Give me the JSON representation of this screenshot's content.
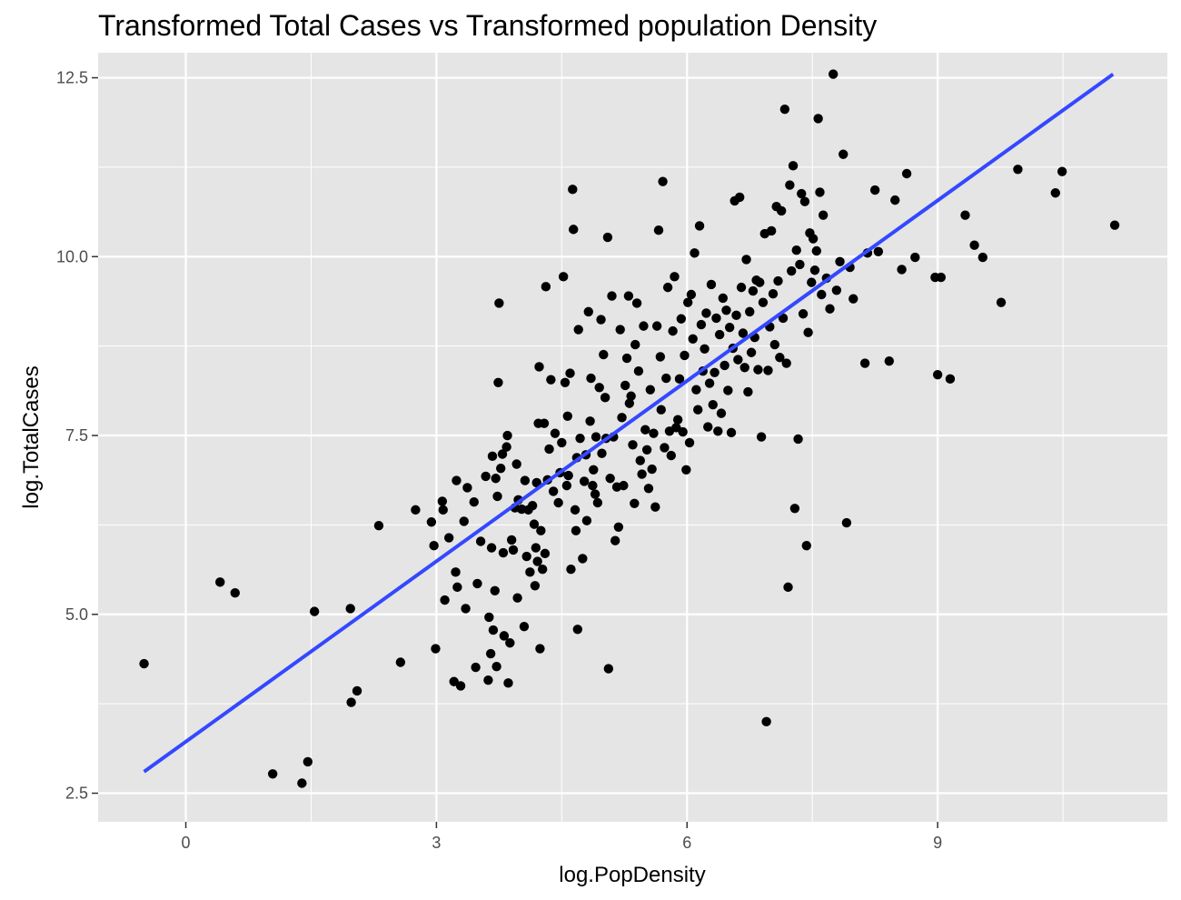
{
  "chart_data": {
    "type": "scatter",
    "title": "Transformed Total Cases vs Transformed population Density",
    "xlabel": "log.PopDensity",
    "ylabel": "log.TotalCases",
    "xlim": [
      -1.05,
      11.75
    ],
    "ylim": [
      2.1,
      12.85
    ],
    "x_ticks": [
      0,
      3,
      6,
      9
    ],
    "x_tick_labels": [
      "0",
      "3",
      "6",
      "9"
    ],
    "y_ticks": [
      2.5,
      5.0,
      7.5,
      10.0,
      12.5
    ],
    "y_tick_labels": [
      "2.5",
      "5.0",
      "7.5",
      "10.0",
      "12.5"
    ],
    "grid": true,
    "colors": {
      "panel": "#e5e5e5",
      "grid": "#ffffff",
      "points": "#000000",
      "fit_line": "#3348ff"
    },
    "fit_line": {
      "x": [
        -0.5,
        11.1
      ],
      "y": [
        2.8,
        12.55
      ]
    },
    "points": [
      [
        -0.5,
        4.31
      ],
      [
        0.41,
        5.45
      ],
      [
        0.59,
        5.3
      ],
      [
        1.04,
        2.77
      ],
      [
        1.39,
        2.64
      ],
      [
        1.46,
        2.94
      ],
      [
        1.54,
        5.04
      ],
      [
        1.97,
        5.08
      ],
      [
        1.98,
        3.77
      ],
      [
        2.05,
        3.93
      ],
      [
        2.31,
        6.24
      ],
      [
        2.57,
        4.33
      ],
      [
        2.75,
        6.46
      ],
      [
        2.94,
        6.29
      ],
      [
        2.97,
        5.96
      ],
      [
        2.99,
        4.52
      ],
      [
        3.07,
        6.58
      ],
      [
        3.08,
        6.46
      ],
      [
        3.1,
        5.2
      ],
      [
        3.15,
        6.07
      ],
      [
        3.21,
        4.06
      ],
      [
        3.23,
        5.59
      ],
      [
        3.24,
        6.87
      ],
      [
        3.25,
        5.38
      ],
      [
        3.29,
        4.0
      ],
      [
        3.33,
        6.3
      ],
      [
        3.35,
        5.08
      ],
      [
        3.37,
        6.77
      ],
      [
        3.45,
        6.57
      ],
      [
        3.47,
        4.26
      ],
      [
        3.49,
        5.43
      ],
      [
        3.53,
        6.02
      ],
      [
        3.59,
        6.93
      ],
      [
        3.62,
        4.08
      ],
      [
        3.63,
        4.96
      ],
      [
        3.65,
        4.45
      ],
      [
        3.66,
        5.93
      ],
      [
        3.67,
        7.21
      ],
      [
        3.68,
        4.78
      ],
      [
        3.7,
        5.33
      ],
      [
        3.71,
        6.9
      ],
      [
        3.72,
        4.27
      ],
      [
        3.73,
        6.65
      ],
      [
        3.74,
        8.24
      ],
      [
        3.75,
        9.35
      ],
      [
        3.77,
        7.04
      ],
      [
        3.79,
        7.24
      ],
      [
        3.8,
        5.86
      ],
      [
        3.81,
        4.7
      ],
      [
        3.84,
        7.34
      ],
      [
        3.85,
        7.5
      ],
      [
        3.86,
        4.04
      ],
      [
        3.88,
        4.6
      ],
      [
        3.9,
        6.04
      ],
      [
        3.92,
        5.9
      ],
      [
        3.94,
        6.49
      ],
      [
        3.96,
        7.1
      ],
      [
        3.97,
        5.23
      ],
      [
        3.98,
        6.6
      ],
      [
        4.02,
        6.47
      ],
      [
        4.05,
        4.83
      ],
      [
        4.06,
        6.87
      ],
      [
        4.08,
        5.81
      ],
      [
        4.1,
        6.46
      ],
      [
        4.12,
        5.59
      ],
      [
        4.15,
        6.52
      ],
      [
        4.17,
        6.26
      ],
      [
        4.18,
        5.4
      ],
      [
        4.19,
        5.93
      ],
      [
        4.2,
        6.84
      ],
      [
        4.21,
        5.74
      ],
      [
        4.22,
        7.67
      ],
      [
        4.23,
        8.46
      ],
      [
        4.24,
        4.52
      ],
      [
        4.25,
        6.17
      ],
      [
        4.27,
        5.63
      ],
      [
        4.29,
        7.67
      ],
      [
        4.3,
        5.85
      ],
      [
        4.31,
        9.58
      ],
      [
        4.33,
        6.88
      ],
      [
        4.35,
        7.31
      ],
      [
        4.37,
        8.28
      ],
      [
        4.4,
        6.72
      ],
      [
        4.42,
        7.53
      ],
      [
        4.46,
        6.56
      ],
      [
        4.48,
        6.98
      ],
      [
        4.5,
        7.4
      ],
      [
        4.52,
        9.72
      ],
      [
        4.54,
        8.24
      ],
      [
        4.56,
        6.8
      ],
      [
        4.57,
        7.77
      ],
      [
        4.58,
        6.94
      ],
      [
        4.6,
        8.37
      ],
      [
        4.61,
        5.63
      ],
      [
        4.63,
        10.94
      ],
      [
        4.64,
        10.38
      ],
      [
        4.66,
        6.46
      ],
      [
        4.67,
        6.17
      ],
      [
        4.68,
        7.19
      ],
      [
        4.69,
        4.79
      ],
      [
        4.7,
        8.98
      ],
      [
        4.72,
        7.46
      ],
      [
        4.75,
        5.78
      ],
      [
        4.77,
        6.86
      ],
      [
        4.79,
        7.23
      ],
      [
        4.8,
        6.31
      ],
      [
        4.82,
        9.23
      ],
      [
        4.84,
        7.7
      ],
      [
        4.85,
        8.3
      ],
      [
        4.87,
        6.8
      ],
      [
        4.88,
        7.02
      ],
      [
        4.9,
        6.68
      ],
      [
        4.91,
        7.48
      ],
      [
        4.93,
        6.56
      ],
      [
        4.95,
        8.17
      ],
      [
        4.97,
        9.12
      ],
      [
        4.98,
        7.25
      ],
      [
        5.0,
        8.63
      ],
      [
        5.02,
        8.03
      ],
      [
        5.03,
        7.46
      ],
      [
        5.05,
        10.27
      ],
      [
        5.06,
        4.24
      ],
      [
        5.08,
        6.9
      ],
      [
        5.1,
        9.45
      ],
      [
        5.12,
        7.48
      ],
      [
        5.14,
        6.03
      ],
      [
        5.16,
        6.78
      ],
      [
        5.18,
        6.22
      ],
      [
        5.2,
        8.98
      ],
      [
        5.22,
        7.75
      ],
      [
        5.24,
        6.8
      ],
      [
        5.26,
        8.2
      ],
      [
        5.28,
        8.58
      ],
      [
        5.3,
        9.45
      ],
      [
        5.31,
        7.95
      ],
      [
        5.33,
        8.05
      ],
      [
        5.35,
        7.37
      ],
      [
        5.37,
        6.55
      ],
      [
        5.38,
        8.77
      ],
      [
        5.4,
        9.35
      ],
      [
        5.42,
        8.4
      ],
      [
        5.44,
        7.15
      ],
      [
        5.46,
        6.96
      ],
      [
        5.48,
        9.03
      ],
      [
        5.5,
        7.58
      ],
      [
        5.52,
        7.3
      ],
      [
        5.54,
        6.76
      ],
      [
        5.56,
        8.14
      ],
      [
        5.58,
        7.03
      ],
      [
        5.6,
        7.53
      ],
      [
        5.62,
        6.5
      ],
      [
        5.64,
        9.03
      ],
      [
        5.66,
        10.37
      ],
      [
        5.68,
        8.6
      ],
      [
        5.69,
        7.86
      ],
      [
        5.71,
        11.05
      ],
      [
        5.73,
        7.33
      ],
      [
        5.75,
        8.3
      ],
      [
        5.77,
        9.57
      ],
      [
        5.79,
        7.56
      ],
      [
        5.81,
        7.22
      ],
      [
        5.83,
        8.96
      ],
      [
        5.85,
        9.72
      ],
      [
        5.87,
        7.61
      ],
      [
        5.89,
        7.72
      ],
      [
        5.91,
        8.29
      ],
      [
        5.93,
        9.13
      ],
      [
        5.95,
        7.55
      ],
      [
        5.97,
        8.62
      ],
      [
        5.99,
        7.02
      ],
      [
        6.01,
        9.36
      ],
      [
        6.03,
        7.4
      ],
      [
        6.05,
        9.47
      ],
      [
        6.07,
        8.85
      ],
      [
        6.09,
        10.05
      ],
      [
        6.11,
        8.14
      ],
      [
        6.13,
        7.86
      ],
      [
        6.15,
        10.43
      ],
      [
        6.17,
        9.05
      ],
      [
        6.19,
        8.4
      ],
      [
        6.21,
        8.71
      ],
      [
        6.23,
        9.21
      ],
      [
        6.25,
        7.62
      ],
      [
        6.27,
        8.23
      ],
      [
        6.29,
        9.61
      ],
      [
        6.31,
        7.93
      ],
      [
        6.33,
        8.38
      ],
      [
        6.35,
        9.14
      ],
      [
        6.37,
        7.56
      ],
      [
        6.39,
        8.91
      ],
      [
        6.41,
        7.81
      ],
      [
        6.43,
        9.42
      ],
      [
        6.45,
        8.48
      ],
      [
        6.47,
        9.25
      ],
      [
        6.49,
        8.13
      ],
      [
        6.51,
        9.01
      ],
      [
        6.53,
        7.54
      ],
      [
        6.55,
        8.72
      ],
      [
        6.57,
        10.78
      ],
      [
        6.59,
        9.18
      ],
      [
        6.61,
        8.56
      ],
      [
        6.63,
        10.83
      ],
      [
        6.65,
        9.57
      ],
      [
        6.67,
        8.93
      ],
      [
        6.69,
        8.45
      ],
      [
        6.71,
        9.96
      ],
      [
        6.73,
        8.11
      ],
      [
        6.75,
        9.23
      ],
      [
        6.77,
        8.66
      ],
      [
        6.79,
        9.52
      ],
      [
        6.81,
        8.87
      ],
      [
        6.83,
        9.67
      ],
      [
        6.85,
        8.42
      ],
      [
        6.87,
        9.64
      ],
      [
        6.89,
        7.48
      ],
      [
        6.91,
        9.36
      ],
      [
        6.93,
        10.32
      ],
      [
        6.95,
        3.5
      ],
      [
        6.97,
        8.41
      ],
      [
        6.99,
        9.02
      ],
      [
        7.01,
        10.36
      ],
      [
        7.03,
        9.48
      ],
      [
        7.05,
        8.77
      ],
      [
        7.07,
        10.7
      ],
      [
        7.09,
        9.66
      ],
      [
        7.11,
        8.59
      ],
      [
        7.13,
        10.64
      ],
      [
        7.15,
        9.14
      ],
      [
        7.17,
        12.06
      ],
      [
        7.19,
        8.51
      ],
      [
        7.21,
        5.38
      ],
      [
        7.23,
        11.0
      ],
      [
        7.25,
        9.8
      ],
      [
        7.27,
        11.27
      ],
      [
        7.29,
        6.48
      ],
      [
        7.31,
        10.09
      ],
      [
        7.33,
        7.45
      ],
      [
        7.35,
        9.89
      ],
      [
        7.37,
        10.88
      ],
      [
        7.39,
        9.2
      ],
      [
        7.41,
        10.77
      ],
      [
        7.43,
        5.96
      ],
      [
        7.45,
        8.94
      ],
      [
        7.47,
        10.33
      ],
      [
        7.49,
        9.64
      ],
      [
        7.51,
        10.25
      ],
      [
        7.53,
        9.81
      ],
      [
        7.55,
        10.08
      ],
      [
        7.57,
        11.93
      ],
      [
        7.59,
        10.9
      ],
      [
        7.61,
        9.47
      ],
      [
        7.63,
        10.58
      ],
      [
        7.67,
        9.7
      ],
      [
        7.71,
        9.27
      ],
      [
        7.75,
        12.55
      ],
      [
        7.79,
        9.53
      ],
      [
        7.83,
        9.93
      ],
      [
        7.87,
        11.43
      ],
      [
        7.91,
        6.28
      ],
      [
        7.95,
        9.85
      ],
      [
        7.99,
        9.41
      ],
      [
        8.13,
        8.51
      ],
      [
        8.16,
        10.05
      ],
      [
        8.25,
        10.93
      ],
      [
        8.29,
        10.07
      ],
      [
        8.42,
        8.54
      ],
      [
        8.49,
        10.79
      ],
      [
        8.57,
        9.82
      ],
      [
        8.63,
        11.16
      ],
      [
        8.73,
        9.99
      ],
      [
        8.97,
        9.71
      ],
      [
        9.0,
        8.35
      ],
      [
        9.04,
        9.71
      ],
      [
        9.15,
        8.29
      ],
      [
        9.33,
        10.58
      ],
      [
        9.44,
        10.16
      ],
      [
        9.54,
        9.99
      ],
      [
        9.76,
        9.36
      ],
      [
        9.96,
        11.22
      ],
      [
        10.41,
        10.89
      ],
      [
        10.49,
        11.19
      ],
      [
        11.12,
        10.44
      ]
    ]
  }
}
